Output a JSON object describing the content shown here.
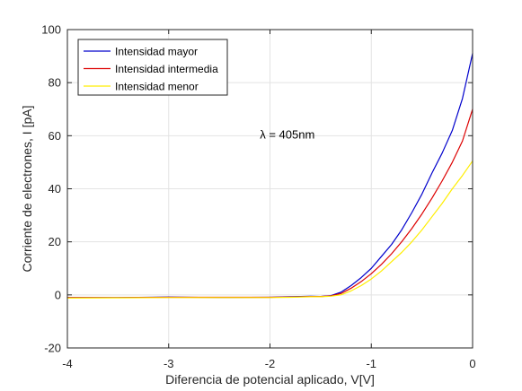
{
  "chart_data": {
    "type": "line",
    "xlabel": "Diferencia de potencial aplicado, V[V]",
    "ylabel": "Corriente de electrones, I [pA]",
    "xlim": [
      -4,
      0
    ],
    "ylim": [
      -20,
      100
    ],
    "xticks": [
      -4,
      -3,
      -2,
      -1,
      0
    ],
    "yticks": [
      -20,
      0,
      20,
      40,
      60,
      80,
      100
    ],
    "grid": true,
    "legend_position": "top-left",
    "annotation": {
      "text": "λ = 405nm",
      "x": -2.1,
      "y": 59
    },
    "series": [
      {
        "name": "Intensidad mayor",
        "color": "#0000cc",
        "x": [
          -4.0,
          -3.5,
          -3.0,
          -2.5,
          -2.0,
          -1.8,
          -1.6,
          -1.5,
          -1.4,
          -1.3,
          -1.2,
          -1.1,
          -1.0,
          -0.9,
          -0.8,
          -0.7,
          -0.6,
          -0.5,
          -0.4,
          -0.3,
          -0.2,
          -0.1,
          0.0
        ],
        "values": [
          -1.0,
          -1.0,
          -0.8,
          -1.0,
          -0.9,
          -0.7,
          -0.5,
          -0.6,
          -0.3,
          1.0,
          3.5,
          6.5,
          10.0,
          14.5,
          19.0,
          24.5,
          31.0,
          38.0,
          46.0,
          53.5,
          62.0,
          74.0,
          91.0
        ]
      },
      {
        "name": "Intensidad intermedia",
        "color": "#dd0000",
        "x": [
          -4.0,
          -3.5,
          -3.0,
          -2.5,
          -2.0,
          -1.8,
          -1.6,
          -1.5,
          -1.4,
          -1.3,
          -1.2,
          -1.1,
          -1.0,
          -0.9,
          -0.8,
          -0.7,
          -0.6,
          -0.5,
          -0.4,
          -0.3,
          -0.2,
          -0.1,
          0.0
        ],
        "values": [
          -1.0,
          -1.0,
          -0.9,
          -0.9,
          -0.9,
          -0.8,
          -0.6,
          -0.6,
          -0.4,
          0.5,
          2.5,
          5.0,
          8.0,
          11.5,
          15.5,
          20.0,
          25.0,
          30.5,
          36.5,
          43.0,
          50.0,
          58.0,
          70.0
        ]
      },
      {
        "name": "Intensidad menor",
        "color": "#ffee00",
        "x": [
          -4.0,
          -3.5,
          -3.0,
          -2.5,
          -2.0,
          -1.8,
          -1.6,
          -1.5,
          -1.4,
          -1.3,
          -1.2,
          -1.1,
          -1.0,
          -0.9,
          -0.8,
          -0.7,
          -0.6,
          -0.5,
          -0.4,
          -0.3,
          -0.2,
          -0.1,
          0.0
        ],
        "values": [
          -1.2,
          -1.1,
          -1.0,
          -1.0,
          -1.0,
          -0.9,
          -0.7,
          -0.7,
          -0.5,
          0.0,
          1.5,
          3.5,
          6.0,
          9.0,
          12.5,
          16.0,
          20.0,
          24.5,
          29.5,
          34.5,
          40.0,
          45.0,
          50.5
        ]
      }
    ]
  }
}
